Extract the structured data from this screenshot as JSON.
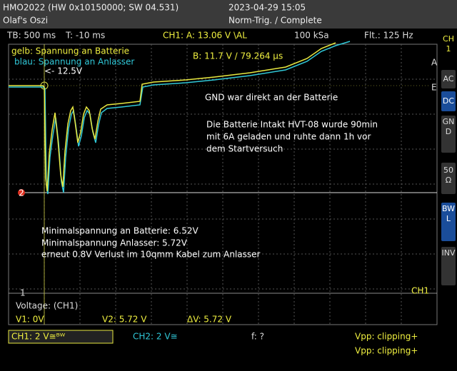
{
  "header": {
    "device": "HMO2022 (HW 0x10150000; SW 04.531)",
    "owner": "Olaf's Oszi",
    "datetime": "2023-04-29 15:05",
    "trigger_state": "Norm-Trig. / Complete"
  },
  "status": {
    "timebase": "TB: 500 ms",
    "trigger_time": "T: -10 ms",
    "trigger": "CH1: A: 13.06 V \\AL",
    "samplerate": "100 kSa",
    "filter": "Flt.: 125 Hz"
  },
  "side_panel": {
    "channel": "CH1",
    "buttons": [
      "AC",
      "DC",
      "GND",
      "50 Ω",
      "BWL",
      "INV"
    ]
  },
  "plot": {
    "legend_yellow": "gelb: Spannung an Batterie",
    "legend_blue": "blau: Spannung an Anlasser",
    "marker_note": "<- 12.5V",
    "cursor_b": "B: 11.7 V / 79.264 µs",
    "note_gnd": "GND war direkt an der Batterie",
    "note_battery": [
      "Die Batterie Intakt HVT-08 wurde 90min",
      "mit 6A geladen und ruhte dann 1h vor",
      "dem Startversuch"
    ],
    "note_min": [
      "Minimalspannung an Batterie: 6.52V",
      "Minimalspannung Anlasser: 5.72V",
      "erneut 0.8V Verlust im 10qmm Kabel zum Anlasser"
    ],
    "marker_a": "A",
    "marker_e": "E",
    "ref_2": "2",
    "ref_1": "1",
    "ch1_label": "CH1"
  },
  "measure": {
    "title": "Voltage: (CH1)",
    "v1": "V1: 0V",
    "v2": "V2: 5.72 V",
    "dv": "ΔV: 5.72 V"
  },
  "footer": {
    "ch1": "CH1: 2 V≅ᴮᵂ",
    "ch2": "CH2: 2 V≅",
    "freq": "f: ?",
    "vpp1": "Vpp: clipping+",
    "vpp2": "Vpp: clipping+"
  }
}
